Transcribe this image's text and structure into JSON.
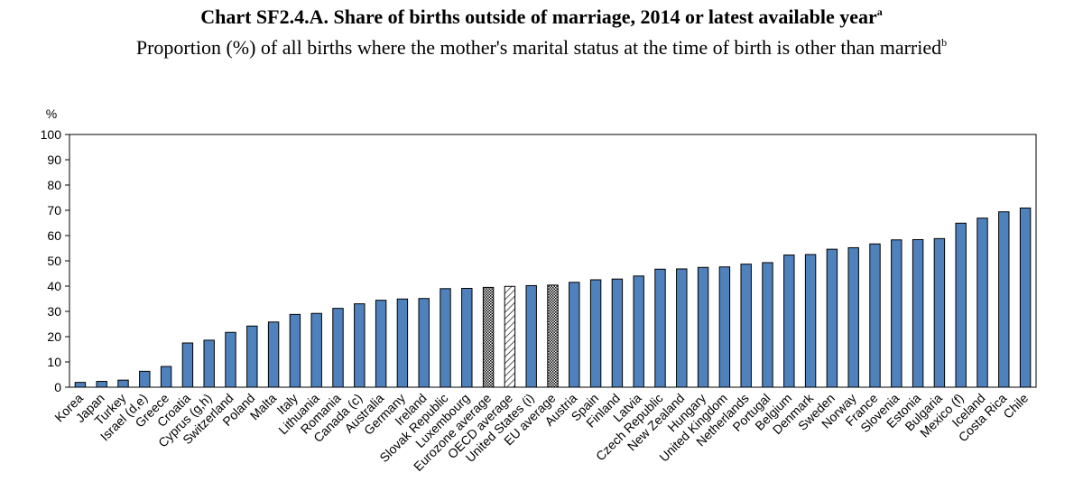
{
  "chart_data": {
    "type": "bar",
    "title": "Chart SF2.4.A. Share of births outside of marriage, 2014 or latest available year",
    "title_superscript": "a",
    "subtitle": "Proportion (%) of all births where the mother's marital status at the time of birth is other than married",
    "subtitle_superscript": "b",
    "ylabel": "%",
    "xlabel": "",
    "ylim": [
      0,
      100
    ],
    "yticks": [
      0,
      10,
      20,
      30,
      40,
      50,
      60,
      70,
      80,
      90,
      100
    ],
    "grid": false,
    "colors": {
      "bar": "#4f81bd",
      "outline": "#000000",
      "average_pattern": "#000000"
    },
    "categories": [
      "Korea",
      "Japan",
      "Turkey",
      "Israel (d,e)",
      "Greece",
      "Croatia",
      "Cyprus (g,h)",
      "Switzerland",
      "Poland",
      "Malta",
      "Italy",
      "Lithuania",
      "Romania",
      "Canada (c)",
      "Australia",
      "Germany",
      "Ireland",
      "Slovak Republic",
      "Luxembourg",
      "Eurozone average",
      "OECD average",
      "United States (i)",
      "EU average",
      "Austria",
      "Spain",
      "Finland",
      "Latvia",
      "Czech Republic",
      "New Zealand",
      "Hungary",
      "United Kingdom",
      "Netherlands",
      "Portugal",
      "Belgium",
      "Denmark",
      "Sweden",
      "Norway",
      "France",
      "Slovenia",
      "Estonia",
      "Bulgaria",
      "Mexico (f)",
      "Iceland",
      "Costa Rica",
      "Chile"
    ],
    "values": [
      1.9,
      2.3,
      2.8,
      6.3,
      8.2,
      17.5,
      18.6,
      21.7,
      24.2,
      25.8,
      28.8,
      29.2,
      31.2,
      33.0,
      34.4,
      34.9,
      35.1,
      39.0,
      39.1,
      39.5,
      39.9,
      40.2,
      40.4,
      41.5,
      42.5,
      42.8,
      44.0,
      46.7,
      46.8,
      47.4,
      47.6,
      48.7,
      49.3,
      52.3,
      52.5,
      54.6,
      55.2,
      56.7,
      58.3,
      58.4,
      58.8,
      64.9,
      66.9,
      69.4,
      70.9
    ],
    "bar_styles": [
      "solid",
      "solid",
      "solid",
      "solid",
      "solid",
      "solid",
      "solid",
      "solid",
      "solid",
      "solid",
      "solid",
      "solid",
      "solid",
      "solid",
      "solid",
      "solid",
      "solid",
      "solid",
      "solid",
      "checked",
      "hatched",
      "solid",
      "checked",
      "solid",
      "solid",
      "solid",
      "solid",
      "solid",
      "solid",
      "solid",
      "solid",
      "solid",
      "solid",
      "solid",
      "solid",
      "solid",
      "solid",
      "solid",
      "solid",
      "solid",
      "solid",
      "solid",
      "solid",
      "solid",
      "solid"
    ]
  }
}
